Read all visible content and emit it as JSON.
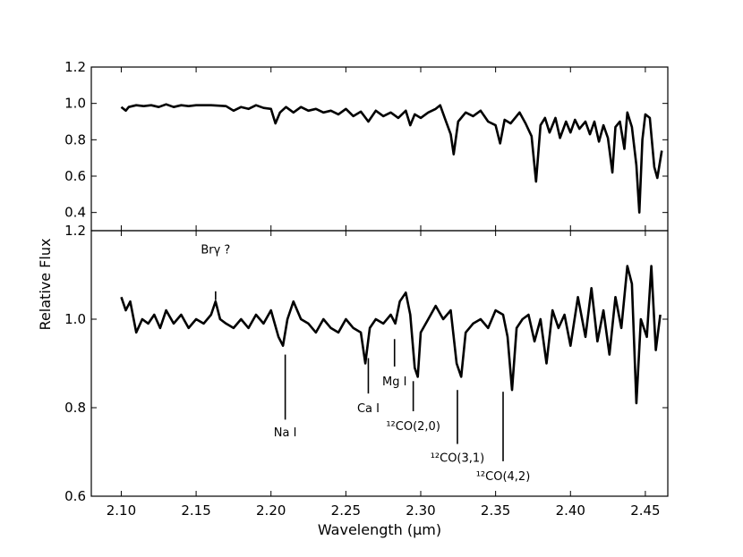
{
  "chart_data": [
    {
      "type": "line",
      "panel": "top",
      "xlabel": "",
      "ylabel": "",
      "xlim": [
        2.08,
        2.465
      ],
      "ylim": [
        0.3,
        1.2
      ],
      "yticks": [
        0.4,
        0.6,
        0.8,
        1.0,
        1.2
      ],
      "ytick_labels": [
        "0.4",
        "0.6",
        "0.8",
        "1.0",
        "1.2"
      ],
      "series": [
        {
          "points": [
            [
              2.1,
              0.98
            ],
            [
              2.103,
              0.96
            ],
            [
              2.105,
              0.98
            ],
            [
              2.11,
              0.99
            ],
            [
              2.115,
              0.985
            ],
            [
              2.12,
              0.99
            ],
            [
              2.125,
              0.98
            ],
            [
              2.13,
              0.995
            ],
            [
              2.135,
              0.98
            ],
            [
              2.14,
              0.99
            ],
            [
              2.145,
              0.985
            ],
            [
              2.15,
              0.99
            ],
            [
              2.16,
              0.99
            ],
            [
              2.17,
              0.985
            ],
            [
              2.175,
              0.96
            ],
            [
              2.18,
              0.98
            ],
            [
              2.185,
              0.97
            ],
            [
              2.19,
              0.99
            ],
            [
              2.195,
              0.975
            ],
            [
              2.2,
              0.97
            ],
            [
              2.203,
              0.89
            ],
            [
              2.206,
              0.95
            ],
            [
              2.21,
              0.98
            ],
            [
              2.215,
              0.95
            ],
            [
              2.22,
              0.98
            ],
            [
              2.225,
              0.96
            ],
            [
              2.23,
              0.97
            ],
            [
              2.235,
              0.95
            ],
            [
              2.24,
              0.96
            ],
            [
              2.245,
              0.94
            ],
            [
              2.25,
              0.97
            ],
            [
              2.255,
              0.93
            ],
            [
              2.26,
              0.955
            ],
            [
              2.265,
              0.9
            ],
            [
              2.27,
              0.96
            ],
            [
              2.275,
              0.93
            ],
            [
              2.28,
              0.95
            ],
            [
              2.285,
              0.92
            ],
            [
              2.29,
              0.96
            ],
            [
              2.293,
              0.88
            ],
            [
              2.296,
              0.94
            ],
            [
              2.3,
              0.92
            ],
            [
              2.305,
              0.95
            ],
            [
              2.31,
              0.97
            ],
            [
              2.313,
              0.99
            ],
            [
              2.316,
              0.92
            ],
            [
              2.32,
              0.83
            ],
            [
              2.322,
              0.72
            ],
            [
              2.325,
              0.9
            ],
            [
              2.33,
              0.95
            ],
            [
              2.335,
              0.93
            ],
            [
              2.34,
              0.96
            ],
            [
              2.345,
              0.9
            ],
            [
              2.35,
              0.88
            ],
            [
              2.353,
              0.78
            ],
            [
              2.356,
              0.91
            ],
            [
              2.36,
              0.89
            ],
            [
              2.363,
              0.92
            ],
            [
              2.366,
              0.95
            ],
            [
              2.37,
              0.89
            ],
            [
              2.374,
              0.82
            ],
            [
              2.377,
              0.57
            ],
            [
              2.38,
              0.88
            ],
            [
              2.383,
              0.92
            ],
            [
              2.386,
              0.84
            ],
            [
              2.39,
              0.92
            ],
            [
              2.393,
              0.81
            ],
            [
              2.397,
              0.9
            ],
            [
              2.4,
              0.84
            ],
            [
              2.403,
              0.91
            ],
            [
              2.406,
              0.86
            ],
            [
              2.41,
              0.9
            ],
            [
              2.413,
              0.83
            ],
            [
              2.416,
              0.9
            ],
            [
              2.419,
              0.79
            ],
            [
              2.422,
              0.88
            ],
            [
              2.425,
              0.81
            ],
            [
              2.428,
              0.62
            ],
            [
              2.43,
              0.87
            ],
            [
              2.433,
              0.9
            ],
            [
              2.436,
              0.75
            ],
            [
              2.438,
              0.95
            ],
            [
              2.441,
              0.87
            ],
            [
              2.444,
              0.66
            ],
            [
              2.446,
              0.4
            ],
            [
              2.448,
              0.8
            ],
            [
              2.45,
              0.94
            ],
            [
              2.453,
              0.92
            ],
            [
              2.456,
              0.65
            ],
            [
              2.458,
              0.59
            ],
            [
              2.461,
              0.74
            ]
          ]
        }
      ]
    },
    {
      "type": "line",
      "panel": "bottom",
      "xlabel": "Wavelength (μm)",
      "ylabel": "Relative Flux",
      "xlim": [
        2.08,
        2.465
      ],
      "ylim": [
        0.6,
        1.2
      ],
      "yticks": [
        0.6,
        0.8,
        1.0,
        1.2
      ],
      "ytick_labels": [
        "0.6",
        "0.8",
        "1.0",
        "1.2"
      ],
      "xticks": [
        2.1,
        2.15,
        2.2,
        2.25,
        2.3,
        2.35,
        2.4,
        2.45
      ],
      "xtick_labels": [
        "2.10",
        "2.15",
        "2.20",
        "2.25",
        "2.30",
        "2.35",
        "2.40",
        "2.45"
      ],
      "series": [
        {
          "points": [
            [
              2.1,
              1.05
            ],
            [
              2.103,
              1.02
            ],
            [
              2.106,
              1.04
            ],
            [
              2.11,
              0.97
            ],
            [
              2.114,
              1.0
            ],
            [
              2.118,
              0.99
            ],
            [
              2.122,
              1.01
            ],
            [
              2.126,
              0.98
            ],
            [
              2.13,
              1.02
            ],
            [
              2.135,
              0.99
            ],
            [
              2.14,
              1.01
            ],
            [
              2.145,
              0.98
            ],
            [
              2.15,
              1.0
            ],
            [
              2.155,
              0.99
            ],
            [
              2.16,
              1.01
            ],
            [
              2.163,
              1.04
            ],
            [
              2.166,
              1.0
            ],
            [
              2.17,
              0.99
            ],
            [
              2.175,
              0.98
            ],
            [
              2.18,
              1.0
            ],
            [
              2.185,
              0.98
            ],
            [
              2.19,
              1.01
            ],
            [
              2.195,
              0.99
            ],
            [
              2.2,
              1.02
            ],
            [
              2.205,
              0.96
            ],
            [
              2.208,
              0.94
            ],
            [
              2.211,
              1.0
            ],
            [
              2.215,
              1.04
            ],
            [
              2.22,
              1.0
            ],
            [
              2.225,
              0.99
            ],
            [
              2.23,
              0.97
            ],
            [
              2.235,
              1.0
            ],
            [
              2.24,
              0.98
            ],
            [
              2.245,
              0.97
            ],
            [
              2.25,
              1.0
            ],
            [
              2.255,
              0.98
            ],
            [
              2.26,
              0.97
            ],
            [
              2.263,
              0.9
            ],
            [
              2.266,
              0.98
            ],
            [
              2.27,
              1.0
            ],
            [
              2.275,
              0.99
            ],
            [
              2.28,
              1.01
            ],
            [
              2.283,
              0.99
            ],
            [
              2.286,
              1.04
            ],
            [
              2.29,
              1.06
            ],
            [
              2.293,
              1.01
            ],
            [
              2.296,
              0.89
            ],
            [
              2.298,
              0.87
            ],
            [
              2.3,
              0.97
            ],
            [
              2.305,
              1.0
            ],
            [
              2.31,
              1.03
            ],
            [
              2.315,
              1.0
            ],
            [
              2.32,
              1.02
            ],
            [
              2.324,
              0.9
            ],
            [
              2.327,
              0.87
            ],
            [
              2.33,
              0.97
            ],
            [
              2.335,
              0.99
            ],
            [
              2.34,
              1.0
            ],
            [
              2.345,
              0.98
            ],
            [
              2.35,
              1.02
            ],
            [
              2.355,
              1.01
            ],
            [
              2.358,
              0.96
            ],
            [
              2.361,
              0.84
            ],
            [
              2.364,
              0.98
            ],
            [
              2.368,
              1.0
            ],
            [
              2.372,
              1.01
            ],
            [
              2.376,
              0.95
            ],
            [
              2.38,
              1.0
            ],
            [
              2.384,
              0.9
            ],
            [
              2.388,
              1.02
            ],
            [
              2.392,
              0.98
            ],
            [
              2.396,
              1.01
            ],
            [
              2.4,
              0.94
            ],
            [
              2.405,
              1.05
            ],
            [
              2.41,
              0.96
            ],
            [
              2.414,
              1.07
            ],
            [
              2.418,
              0.95
            ],
            [
              2.422,
              1.02
            ],
            [
              2.426,
              0.92
            ],
            [
              2.43,
              1.05
            ],
            [
              2.434,
              0.98
            ],
            [
              2.438,
              1.12
            ],
            [
              2.441,
              1.08
            ],
            [
              2.444,
              0.81
            ],
            [
              2.447,
              1.0
            ],
            [
              2.451,
              0.96
            ],
            [
              2.454,
              1.12
            ],
            [
              2.457,
              0.93
            ],
            [
              2.46,
              1.01
            ]
          ]
        }
      ],
      "annotations": [
        {
          "text": "Brγ ?",
          "x": 2.163,
          "y1": 1.043,
          "y2": 1.063,
          "label_y": 1.148
        },
        {
          "text": "Na I",
          "x": 2.2095,
          "y1": 0.92,
          "y2": 0.773,
          "label_y": 0.735
        },
        {
          "text": "Ca I",
          "x": 2.265,
          "y1": 0.912,
          "y2": 0.832,
          "label_y": 0.79
        },
        {
          "text": "Mg I",
          "x": 2.2825,
          "y1": 0.955,
          "y2": 0.893,
          "label_y": 0.851
        },
        {
          "text": "¹²CO(2,0)",
          "x": 2.295,
          "y1": 0.86,
          "y2": 0.792,
          "label_y": 0.75
        },
        {
          "text": "¹²CO(3,1)",
          "x": 2.3245,
          "y1": 0.84,
          "y2": 0.718,
          "label_y": 0.678
        },
        {
          "text": "¹²CO(4,2)",
          "x": 2.355,
          "y1": 0.836,
          "y2": 0.679,
          "label_y": 0.636
        }
      ]
    }
  ]
}
